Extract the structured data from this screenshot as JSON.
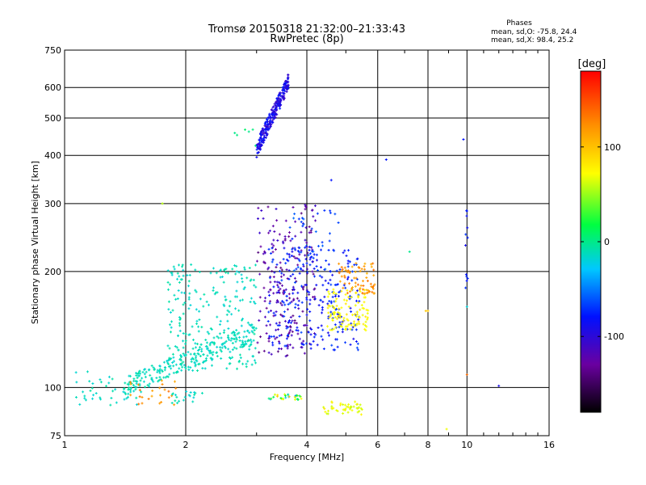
{
  "chart_data": {
    "type": "scatter",
    "title": "Tromsø 20150318 21:32:00–21:33:43",
    "subtitle": "RwPretec (8p)",
    "stats": {
      "heading": "Phases",
      "line1": "mean, sd,O: -75.8, 24.4",
      "line2": "mean, sd,X: 98.4, 25.2"
    },
    "xlabel": "Frequency [MHz]",
    "ylabel": "Stationary phase Virtual Height [km]",
    "x_scale": "log",
    "y_scale": "log",
    "xlim": [
      1,
      16
    ],
    "ylim": [
      75,
      750
    ],
    "x_ticks": [
      1,
      2,
      4,
      6,
      8,
      10,
      16
    ],
    "y_ticks": [
      75,
      100,
      200,
      300,
      400,
      500,
      600,
      750
    ],
    "grid": true,
    "colorbar": {
      "label": "[deg]",
      "range": [
        -180,
        180
      ],
      "ticks": [
        100,
        0,
        -100
      ]
    },
    "clusters": [
      {
        "name": "F-layer spread",
        "f": [
          3.0,
          3.6
        ],
        "h": [
          395,
          650
        ],
        "phase": [
          -125,
          -95
        ],
        "n": 260
      },
      {
        "name": "stray F",
        "f": [
          2.6,
          3.0
        ],
        "h": [
          420,
          480
        ],
        "phase": [
          -20,
          -10
        ],
        "n": 6
      },
      {
        "name": "base diagonal",
        "f": [
          1.4,
          3.0
        ],
        "h": [
          100,
          140
        ],
        "phase": [
          -40,
          -25
        ],
        "n": 220
      },
      {
        "name": "diffuse diagonal",
        "f": [
          1.8,
          3.0
        ],
        "h": [
          110,
          210
        ],
        "phase": [
          -40,
          -25
        ],
        "n": 260
      },
      {
        "name": "low-freq sparse",
        "f": [
          1.05,
          1.6
        ],
        "h": [
          90,
          110
        ],
        "phase": [
          -40,
          -25
        ],
        "n": 40
      },
      {
        "name": "mid purple",
        "f": [
          3.0,
          4.2
        ],
        "h": [
          120,
          300
        ],
        "phase": [
          -150,
          -120
        ],
        "n": 220
      },
      {
        "name": "mid blue",
        "f": [
          3.2,
          5.4
        ],
        "h": [
          125,
          230
        ],
        "phase": [
          -110,
          -85
        ],
        "n": 260
      },
      {
        "name": "upper blue",
        "f": [
          3.6,
          4.8
        ],
        "h": [
          200,
          290
        ],
        "phase": [
          -95,
          -75
        ],
        "n": 40
      },
      {
        "name": "X yellow",
        "f": [
          4.5,
          5.7
        ],
        "h": [
          140,
          180
        ],
        "phase": [
          85,
          110
        ],
        "n": 110
      },
      {
        "name": "X orange",
        "f": [
          4.8,
          5.9
        ],
        "h": [
          175,
          210
        ],
        "phase": [
          125,
          150
        ],
        "n": 70
      },
      {
        "name": "low orange",
        "f": [
          1.45,
          1.9
        ],
        "h": [
          90,
          105
        ],
        "phase": [
          130,
          150
        ],
        "n": 25
      },
      {
        "name": "low 3.5MHz",
        "f": [
          3.2,
          3.9
        ],
        "h": [
          93,
          96
        ],
        "phase": [
          -80,
          150
        ],
        "n": 30
      },
      {
        "name": "low 2.0MHz",
        "f": [
          1.85,
          2.2
        ],
        "h": [
          91,
          98
        ],
        "phase": [
          -40,
          -25
        ],
        "n": 20
      },
      {
        "name": "sporadic E X",
        "f": [
          4.4,
          5.5
        ],
        "h": [
          85,
          92
        ],
        "phase": [
          60,
          110
        ],
        "n": 45
      },
      {
        "name": "10MHz column",
        "f": [
          9.9,
          10.05
        ],
        "h": [
          180,
          300
        ],
        "phase": [
          -110,
          -90
        ],
        "n": 12
      }
    ],
    "isolated_points": [
      {
        "x": 6.3,
        "y": 390,
        "phase": -100
      },
      {
        "x": 9.8,
        "y": 440,
        "phase": -100
      },
      {
        "x": 4.6,
        "y": 345,
        "phase": -100
      },
      {
        "x": 12.0,
        "y": 101,
        "phase": -110
      },
      {
        "x": 8.0,
        "y": 158,
        "phase": 120
      },
      {
        "x": 7.9,
        "y": 158,
        "phase": 120
      },
      {
        "x": 7.2,
        "y": 225,
        "phase": -20
      },
      {
        "x": 8.9,
        "y": 78,
        "phase": 90
      },
      {
        "x": 10.0,
        "y": 108,
        "phase": 150
      },
      {
        "x": 1.75,
        "y": 300,
        "phase": 50
      },
      {
        "x": 10.0,
        "y": 162,
        "phase": -40
      }
    ]
  }
}
